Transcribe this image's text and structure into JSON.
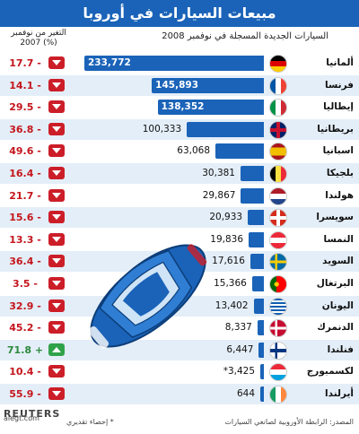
{
  "header": {
    "title": "مبيعات السيارات في أوروبا",
    "subtitle": "السيارات الجديدة المسجلة في نوفمبر 2008",
    "change_header_line1": "التغير من نوفمبر",
    "change_header_line2": "(%) 2007"
  },
  "footer": {
    "source": "المصدر: الرابطة الأوروبية لصانعي السيارات",
    "note": "* إحصاء تقديري",
    "logo_text": "REUTERS",
    "watermark": "alegt.com"
  },
  "colors": {
    "header": "#1a63b8",
    "bar": "#1a63b8",
    "down": "#cc1e28",
    "up": "#2fa24a",
    "band": "#e4eef8"
  },
  "chart_data": {
    "type": "bar",
    "title": "مبيعات السيارات في أوروبا",
    "subtitle": "السيارات الجديدة المسجلة في نوفمبر 2008",
    "categories": [
      "ألمانيا",
      "فرنسا",
      "إيطاليا",
      "بريطانيا",
      "اسبانيا",
      "بلجيكا",
      "هولندا",
      "سويسرا",
      "النمسا",
      "السويد",
      "البرتغال",
      "اليونان",
      "الدنمرك",
      "فنلندا",
      "لكسمبورج",
      "أيرلندا"
    ],
    "flags": [
      "germany-flag-icon",
      "france-flag-icon",
      "italy-flag-icon",
      "uk-flag-icon",
      "spain-flag-icon",
      "belgium-flag-icon",
      "netherlands-flag-icon",
      "switzerland-flag-icon",
      "austria-flag-icon",
      "sweden-flag-icon",
      "portugal-flag-icon",
      "greece-flag-icon",
      "denmark-flag-icon",
      "finland-flag-icon",
      "luxembourg-flag-icon",
      "ireland-flag-icon"
    ],
    "values": [
      233772,
      145893,
      138352,
      100333,
      63068,
      30381,
      29867,
      20933,
      19836,
      17616,
      15366,
      13402,
      8337,
      6447,
      3425,
      644
    ],
    "value_labels": [
      "233,772",
      "145,893",
      "138,352",
      "100,333",
      "63,068",
      "30,381",
      "29,867",
      "20,933",
      "19,836",
      "17,616",
      "15,366",
      "13,402",
      "8,337",
      "6,447",
      "*3,425",
      "644"
    ],
    "change_pct": [
      -17.7,
      -14.1,
      -29.5,
      -36.8,
      -49.6,
      -16.4,
      -21.7,
      -15.6,
      -13.3,
      -36.4,
      -3.5,
      -32.9,
      -45.2,
      71.8,
      -10.4,
      -55.9
    ],
    "change_labels": [
      "17.7 -",
      "14.1 -",
      "29.5 -",
      "36.8 -",
      "49.6 -",
      "16.4 -",
      "21.7 -",
      "15.6 -",
      "13.3 -",
      "36.4 -",
      "3.5 -",
      "32.9 -",
      "45.2 -",
      "71.8 +",
      "10.4 -",
      "55.9 -"
    ],
    "estimated": [
      "لكسمبورج"
    ]
  }
}
